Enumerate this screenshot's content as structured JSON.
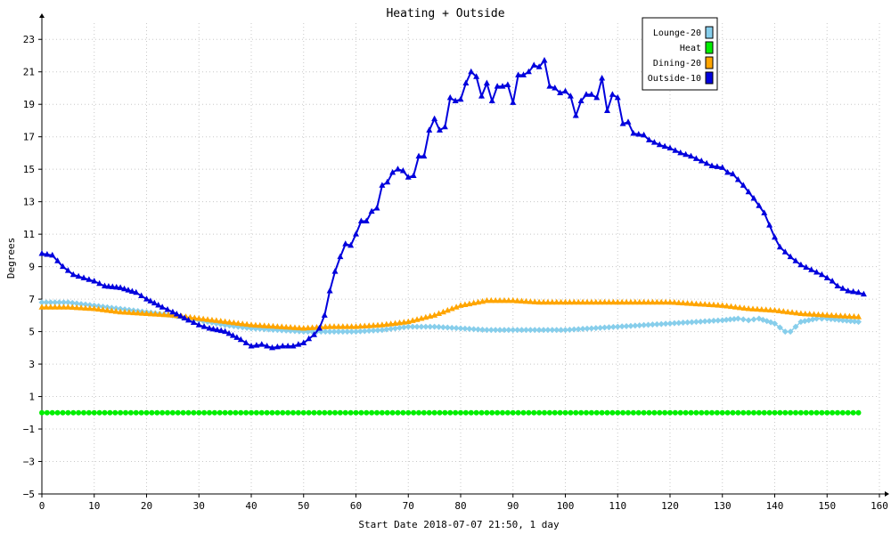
{
  "chart_data": {
    "type": "line",
    "title": "Heating + Outside",
    "xlabel": "Start Date 2018-07-07 21:50, 1 day",
    "ylabel": "Degrees",
    "xlim": [
      0,
      160
    ],
    "ylim": [
      -5,
      24
    ],
    "x_ticks": [
      0,
      10,
      20,
      30,
      40,
      50,
      60,
      70,
      80,
      90,
      100,
      110,
      120,
      130,
      140,
      150,
      160
    ],
    "y_ticks": [
      -5,
      -3,
      -1,
      1,
      3,
      5,
      7,
      9,
      11,
      13,
      15,
      17,
      19,
      21,
      23
    ],
    "grid": true,
    "legend_position": "top-right",
    "series": [
      {
        "name": "Lounge-20",
        "color": "#87ceeb",
        "marker": "diamond",
        "points": [
          [
            0,
            6.8
          ],
          [
            5,
            6.8
          ],
          [
            10,
            6.6
          ],
          [
            15,
            6.4
          ],
          [
            20,
            6.2
          ],
          [
            25,
            6.0
          ],
          [
            30,
            5.7
          ],
          [
            35,
            5.4
          ],
          [
            40,
            5.2
          ],
          [
            45,
            5.1
          ],
          [
            50,
            5.0
          ],
          [
            55,
            5.0
          ],
          [
            60,
            5.0
          ],
          [
            65,
            5.1
          ],
          [
            70,
            5.3
          ],
          [
            75,
            5.3
          ],
          [
            80,
            5.2
          ],
          [
            85,
            5.1
          ],
          [
            90,
            5.1
          ],
          [
            95,
            5.1
          ],
          [
            100,
            5.1
          ],
          [
            105,
            5.2
          ],
          [
            110,
            5.3
          ],
          [
            115,
            5.4
          ],
          [
            120,
            5.5
          ],
          [
            125,
            5.6
          ],
          [
            130,
            5.7
          ],
          [
            133,
            5.8
          ],
          [
            135,
            5.7
          ],
          [
            137,
            5.8
          ],
          [
            140,
            5.5
          ],
          [
            142,
            5.0
          ],
          [
            143,
            5.0
          ],
          [
            145,
            5.6
          ],
          [
            148,
            5.8
          ],
          [
            150,
            5.8
          ],
          [
            153,
            5.7
          ],
          [
            156,
            5.6
          ]
        ]
      },
      {
        "name": "Heat",
        "color": "#00ee00",
        "marker": "circle",
        "points": [
          [
            0,
            0
          ],
          [
            156,
            0
          ]
        ]
      },
      {
        "name": "Dining-20",
        "color": "#ffa500",
        "marker": "triangle",
        "points": [
          [
            0,
            6.5
          ],
          [
            5,
            6.5
          ],
          [
            10,
            6.4
          ],
          [
            15,
            6.2
          ],
          [
            20,
            6.1
          ],
          [
            25,
            6.0
          ],
          [
            30,
            5.8
          ],
          [
            35,
            5.6
          ],
          [
            40,
            5.4
          ],
          [
            45,
            5.3
          ],
          [
            50,
            5.2
          ],
          [
            55,
            5.3
          ],
          [
            60,
            5.3
          ],
          [
            65,
            5.4
          ],
          [
            70,
            5.6
          ],
          [
            75,
            6.0
          ],
          [
            80,
            6.6
          ],
          [
            85,
            6.9
          ],
          [
            90,
            6.9
          ],
          [
            95,
            6.8
          ],
          [
            100,
            6.8
          ],
          [
            105,
            6.8
          ],
          [
            110,
            6.8
          ],
          [
            115,
            6.8
          ],
          [
            120,
            6.8
          ],
          [
            125,
            6.7
          ],
          [
            130,
            6.6
          ],
          [
            135,
            6.4
          ],
          [
            140,
            6.3
          ],
          [
            145,
            6.1
          ],
          [
            150,
            6.0
          ],
          [
            156,
            5.9
          ]
        ]
      },
      {
        "name": "Outside-10",
        "color": "#0000dd",
        "marker": "triangle",
        "points": [
          [
            0,
            9.8
          ],
          [
            2,
            9.7
          ],
          [
            4,
            9.0
          ],
          [
            6,
            8.5
          ],
          [
            8,
            8.3
          ],
          [
            10,
            8.1
          ],
          [
            12,
            7.8
          ],
          [
            15,
            7.7
          ],
          [
            18,
            7.4
          ],
          [
            20,
            7.0
          ],
          [
            23,
            6.5
          ],
          [
            25,
            6.2
          ],
          [
            28,
            5.7
          ],
          [
            30,
            5.4
          ],
          [
            32,
            5.2
          ],
          [
            35,
            5.0
          ],
          [
            38,
            4.5
          ],
          [
            40,
            4.1
          ],
          [
            42,
            4.2
          ],
          [
            44,
            4.0
          ],
          [
            46,
            4.1
          ],
          [
            48,
            4.1
          ],
          [
            50,
            4.3
          ],
          [
            52,
            4.8
          ],
          [
            53,
            5.2
          ],
          [
            54,
            6.0
          ],
          [
            55,
            7.5
          ],
          [
            56,
            8.7
          ],
          [
            57,
            9.6
          ],
          [
            58,
            10.4
          ],
          [
            59,
            10.3
          ],
          [
            60,
            11.0
          ],
          [
            61,
            11.8
          ],
          [
            62,
            11.8
          ],
          [
            63,
            12.4
          ],
          [
            64,
            12.6
          ],
          [
            65,
            14.0
          ],
          [
            66,
            14.2
          ],
          [
            67,
            14.8
          ],
          [
            68,
            15.0
          ],
          [
            69,
            14.9
          ],
          [
            70,
            14.5
          ],
          [
            71,
            14.6
          ],
          [
            72,
            15.8
          ],
          [
            73,
            15.8
          ],
          [
            74,
            17.4
          ],
          [
            75,
            18.1
          ],
          [
            76,
            17.4
          ],
          [
            77,
            17.6
          ],
          [
            78,
            19.4
          ],
          [
            79,
            19.2
          ],
          [
            80,
            19.3
          ],
          [
            81,
            20.3
          ],
          [
            82,
            21.0
          ],
          [
            83,
            20.7
          ],
          [
            84,
            19.5
          ],
          [
            85,
            20.3
          ],
          [
            86,
            19.2
          ],
          [
            87,
            20.1
          ],
          [
            88,
            20.1
          ],
          [
            89,
            20.2
          ],
          [
            90,
            19.1
          ],
          [
            91,
            20.8
          ],
          [
            92,
            20.8
          ],
          [
            93,
            21.0
          ],
          [
            94,
            21.4
          ],
          [
            95,
            21.3
          ],
          [
            96,
            21.7
          ],
          [
            97,
            20.1
          ],
          [
            98,
            20.0
          ],
          [
            99,
            19.7
          ],
          [
            100,
            19.8
          ],
          [
            101,
            19.5
          ],
          [
            102,
            18.3
          ],
          [
            103,
            19.2
          ],
          [
            104,
            19.6
          ],
          [
            105,
            19.6
          ],
          [
            106,
            19.4
          ],
          [
            107,
            20.6
          ],
          [
            108,
            18.6
          ],
          [
            109,
            19.6
          ],
          [
            110,
            19.4
          ],
          [
            111,
            17.8
          ],
          [
            112,
            17.9
          ],
          [
            113,
            17.2
          ],
          [
            115,
            17.1
          ],
          [
            116,
            16.8
          ],
          [
            118,
            16.5
          ],
          [
            120,
            16.3
          ],
          [
            122,
            16.0
          ],
          [
            124,
            15.8
          ],
          [
            126,
            15.5
          ],
          [
            128,
            15.2
          ],
          [
            130,
            15.1
          ],
          [
            131,
            14.8
          ],
          [
            132,
            14.7
          ],
          [
            134,
            14.0
          ],
          [
            136,
            13.2
          ],
          [
            138,
            12.3
          ],
          [
            140,
            10.8
          ],
          [
            141,
            10.2
          ],
          [
            142,
            9.9
          ],
          [
            143,
            9.6
          ],
          [
            145,
            9.1
          ],
          [
            147,
            8.8
          ],
          [
            149,
            8.5
          ],
          [
            151,
            8.1
          ],
          [
            152,
            7.8
          ],
          [
            154,
            7.5
          ],
          [
            156,
            7.4
          ],
          [
            157,
            7.3
          ]
        ]
      }
    ]
  }
}
